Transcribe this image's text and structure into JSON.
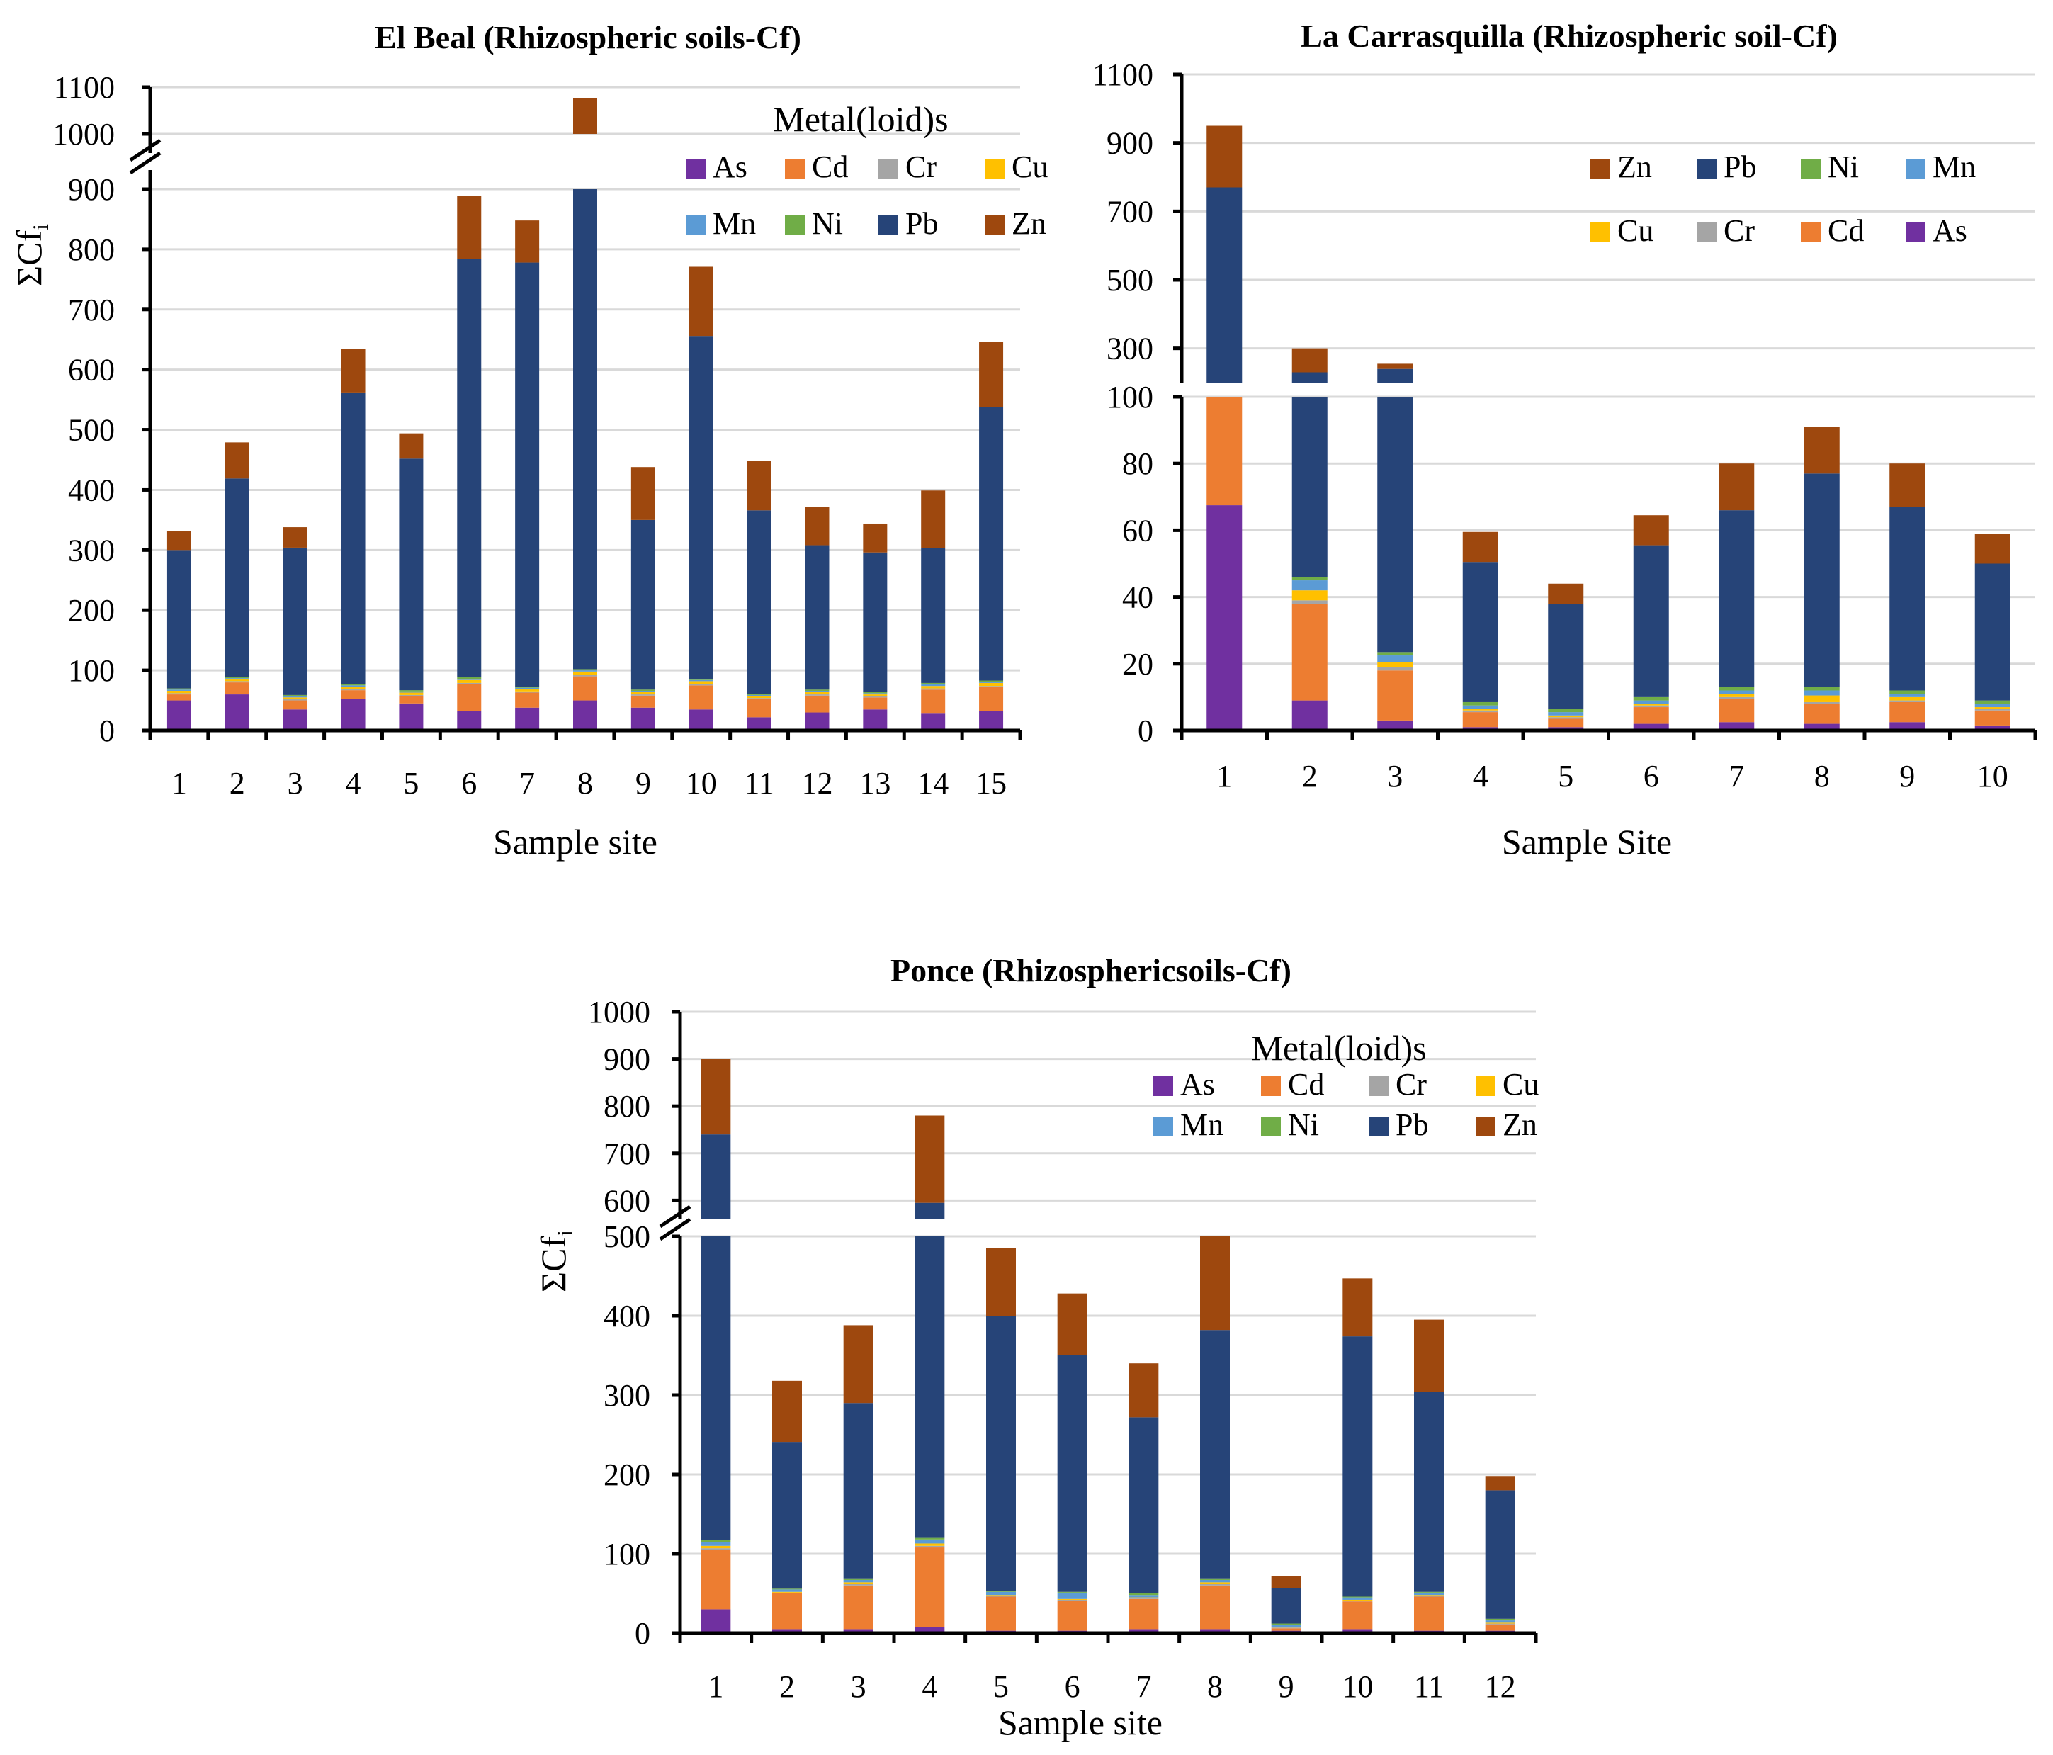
{
  "colors": {
    "As": "#7030a0",
    "Cd": "#ed7d31",
    "Cr": "#a5a5a5",
    "Cu": "#ffc000",
    "Mn": "#5b9bd5",
    "Ni": "#70ad47",
    "Pb": "#264478",
    "Zn": "#9e480e"
  },
  "chart_data": [
    {
      "type": "bar",
      "stacked": true,
      "title": "El Beal (Rhizospheric soils-Cf)",
      "xlabel": "Sample site",
      "ylabel": "ΣCf",
      "ylabel_sub": "i",
      "legend_title": "Metal(loid)s",
      "legend_order": [
        "As",
        "Cd",
        "Cr",
        "Cu",
        "Mn",
        "Ni",
        "Pb",
        "Zn"
      ],
      "legend_position": "top-right",
      "y_break": [
        900,
        1000
      ],
      "upper_ticks": [
        "1000",
        "1100"
      ],
      "lower_ticks": [
        "0",
        "100",
        "200",
        "300",
        "400",
        "500",
        "600",
        "700",
        "800",
        "900"
      ],
      "categories": [
        "1",
        "2",
        "3",
        "4",
        "5",
        "6",
        "7",
        "8",
        "9",
        "10",
        "11",
        "12",
        "13",
        "14",
        "15"
      ],
      "series": [
        {
          "name": "As",
          "values": [
            50,
            60,
            35,
            52,
            45,
            32,
            38,
            50,
            38,
            35,
            22,
            30,
            35,
            28,
            32
          ]
        },
        {
          "name": "Cd",
          "values": [
            10,
            20,
            15,
            15,
            12,
            45,
            25,
            40,
            20,
            40,
            30,
            28,
            20,
            40,
            40
          ]
        },
        {
          "name": "Cr",
          "values": [
            2,
            2,
            2,
            2,
            2,
            2,
            2,
            2,
            2,
            2,
            2,
            2,
            2,
            2,
            2
          ]
        },
        {
          "name": "Cu",
          "values": [
            4,
            3,
            3,
            4,
            4,
            5,
            4,
            6,
            4,
            5,
            3,
            4,
            3,
            4,
            5
          ]
        },
        {
          "name": "Mn",
          "values": [
            2,
            2,
            2,
            2,
            2,
            2,
            2,
            2,
            2,
            2,
            2,
            2,
            2,
            3,
            2
          ]
        },
        {
          "name": "Ni",
          "values": [
            2,
            2,
            2,
            2,
            2,
            3,
            2,
            2,
            2,
            2,
            2,
            2,
            2,
            2,
            2
          ]
        },
        {
          "name": "Pb",
          "values": [
            230,
            330,
            245,
            485,
            385,
            695,
            705,
            870,
            282,
            570,
            305,
            240,
            232,
            224,
            455
          ]
        },
        {
          "name": "Zn",
          "values": [
            32,
            60,
            34,
            72,
            42,
            105,
            70,
            105,
            88,
            115,
            82,
            64,
            48,
            96,
            108
          ]
        }
      ]
    },
    {
      "type": "bar",
      "stacked": true,
      "title": "La Carrasquilla (Rhizospheric soil-Cf)",
      "xlabel": "Sample Site",
      "ylabel": "",
      "legend_order": [
        "Zn",
        "Pb",
        "Ni",
        "Mn",
        "Cu",
        "Cr",
        "Cd",
        "As"
      ],
      "legend_position": "top-right",
      "y_break": [
        100,
        200
      ],
      "upper_ticks": [
        "300",
        "500",
        "700",
        "900",
        "1100"
      ],
      "lower_ticks": [
        "0",
        "20",
        "40",
        "60",
        "80",
        "100"
      ],
      "categories": [
        "1",
        "2",
        "3",
        "4",
        "5",
        "6",
        "7",
        "8",
        "9",
        "10"
      ],
      "series": [
        {
          "name": "As",
          "values": [
            67.5,
            9,
            3,
            1,
            1,
            2,
            2.5,
            2,
            2.5,
            1.5
          ]
        },
        {
          "name": "Cd",
          "values": [
            120,
            29,
            15,
            4.5,
            2.5,
            5,
            7,
            6,
            6,
            4.5
          ]
        },
        {
          "name": "Cr",
          "values": [
            1,
            1,
            1,
            0.5,
            0.5,
            0.5,
            0.5,
            0.5,
            0.5,
            0.5
          ]
        },
        {
          "name": "Cu",
          "values": [
            2,
            3,
            1.5,
            0.5,
            0.5,
            0.5,
            1,
            2,
            1,
            0.5
          ]
        },
        {
          "name": "Mn",
          "values": [
            2,
            3,
            2,
            1,
            1,
            1,
            1,
            1.5,
            1,
            1
          ]
        },
        {
          "name": "Ni",
          "values": [
            1,
            1,
            1,
            1,
            1,
            1,
            1,
            1,
            1,
            1
          ]
        },
        {
          "name": "Pb",
          "values": [
            576.5,
            184,
            216.5,
            42,
            31.5,
            45.5,
            53,
            64,
            55,
            41
          ]
        },
        {
          "name": "Zn",
          "values": [
            180,
            70,
            15,
            9,
            6,
            9,
            14,
            14,
            13,
            9
          ]
        }
      ]
    },
    {
      "type": "bar",
      "stacked": true,
      "title": "Ponce (Rhizosphericsoils-Cf)",
      "xlabel": "Sample site",
      "ylabel": "ΣCf",
      "ylabel_sub": "i",
      "legend_title": "Metal(loid)s",
      "legend_order": [
        "As",
        "Cd",
        "Cr",
        "Cu",
        "Mn",
        "Ni",
        "Pb",
        "Zn"
      ],
      "legend_position": "top-right",
      "y_break": [
        500,
        560
      ],
      "upper_ticks": [
        "600",
        "700",
        "800",
        "900",
        "1000"
      ],
      "lower_ticks": [
        "0",
        "100",
        "200",
        "300",
        "400",
        "500"
      ],
      "categories": [
        "1",
        "2",
        "3",
        "4",
        "5",
        "6",
        "7",
        "8",
        "9",
        "10",
        "11",
        "12"
      ],
      "series": [
        {
          "name": "As",
          "values": [
            30,
            5,
            5,
            8,
            3,
            3,
            5,
            5,
            3,
            5,
            3,
            3
          ]
        },
        {
          "name": "Cd",
          "values": [
            75,
            45,
            55,
            100,
            43,
            38,
            38,
            55,
            3,
            35,
            43,
            8
          ]
        },
        {
          "name": "Cr",
          "values": [
            2,
            1,
            2,
            2,
            1,
            1,
            1,
            2,
            1,
            1,
            1,
            1
          ]
        },
        {
          "name": "Cu",
          "values": [
            3,
            1,
            2,
            3,
            1,
            1,
            1,
            2,
            1,
            1,
            1,
            2
          ]
        },
        {
          "name": "Mn",
          "values": [
            5,
            3,
            3,
            5,
            4,
            8,
            3,
            3,
            2,
            3,
            3,
            2
          ]
        },
        {
          "name": "Ni",
          "values": [
            2,
            1,
            2,
            2,
            1,
            1,
            2,
            2,
            2,
            1,
            1,
            2
          ]
        },
        {
          "name": "Pb",
          "values": [
            623,
            185,
            221,
            475,
            347,
            298,
            222,
            313,
            45,
            328,
            252,
            162
          ]
        },
        {
          "name": "Zn",
          "values": [
            160,
            77,
            98,
            185,
            85,
            78,
            68,
            118,
            15,
            73,
            91,
            18
          ]
        }
      ]
    }
  ]
}
